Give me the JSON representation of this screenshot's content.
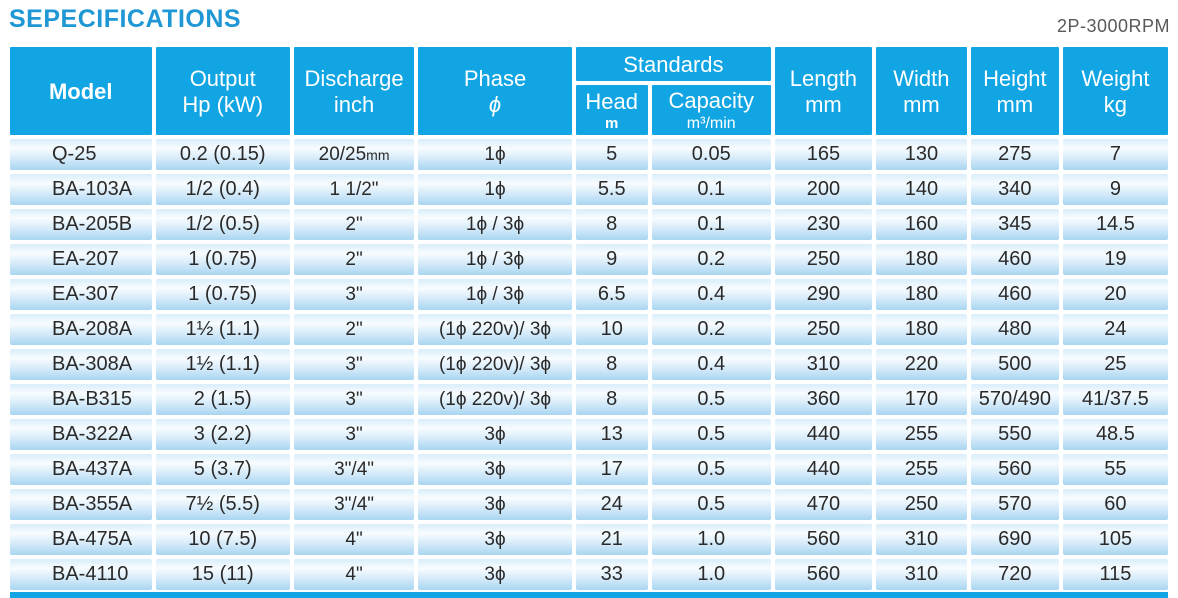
{
  "page": {
    "title": "SEPECIFICATIONS",
    "rpm_label": "2P-3000RPM"
  },
  "colors": {
    "header_blue": "#12a5e3",
    "title_blue": "#1f97d4",
    "row_gradient_top": "#d9edfb",
    "row_gradient_bottom": "#a8d5f1",
    "body_text": "#2a2a2a",
    "rpm_text": "#58595b"
  },
  "table": {
    "column_keys": [
      "model",
      "output",
      "discharge",
      "phase",
      "head",
      "capacity",
      "length",
      "width",
      "height",
      "weight"
    ],
    "headers": {
      "model": "Model",
      "output": [
        "Output",
        "Hp (kW)"
      ],
      "discharge": [
        "Discharge",
        "inch"
      ],
      "phase": [
        "Phase",
        "ϕ"
      ],
      "standards": "Standards",
      "head": [
        "Head",
        "m"
      ],
      "capacity": [
        "Capacity",
        "m³/min"
      ],
      "length": [
        "Length",
        "mm"
      ],
      "width": [
        "Width",
        "mm"
      ],
      "height": [
        "Height",
        "mm"
      ],
      "weight": [
        "Weight",
        "kg"
      ]
    },
    "rows": [
      [
        "Q-25",
        "0.2 (0.15)",
        "20/25mm",
        "1ϕ",
        "5",
        "0.05",
        "165",
        "130",
        "275",
        "7"
      ],
      [
        "BA-103A",
        "1/2 (0.4)",
        "1 1/2\"",
        "1ϕ",
        "5.5",
        "0.1",
        "200",
        "140",
        "340",
        "9"
      ],
      [
        "BA-205B",
        "1/2 (0.5)",
        "2\"",
        "1ϕ / 3ϕ",
        "8",
        "0.1",
        "230",
        "160",
        "345",
        "14.5"
      ],
      [
        "EA-207",
        "1 (0.75)",
        "2\"",
        "1ϕ / 3ϕ",
        "9",
        "0.2",
        "250",
        "180",
        "460",
        "19"
      ],
      [
        "EA-307",
        "1 (0.75)",
        "3\"",
        "1ϕ / 3ϕ",
        "6.5",
        "0.4",
        "290",
        "180",
        "460",
        "20"
      ],
      [
        "BA-208A",
        "1½ (1.1)",
        "2\"",
        "(1ϕ 220v)/ 3ϕ",
        "10",
        "0.2",
        "250",
        "180",
        "480",
        "24"
      ],
      [
        "BA-308A",
        "1½ (1.1)",
        "3\"",
        "(1ϕ 220v)/ 3ϕ",
        "8",
        "0.4",
        "310",
        "220",
        "500",
        "25"
      ],
      [
        "BA-B315",
        "2 (1.5)",
        "3\"",
        "(1ϕ 220v)/ 3ϕ",
        "8",
        "0.5",
        "360",
        "170",
        "570/490",
        "41/37.5"
      ],
      [
        "BA-322A",
        "3 (2.2)",
        "3\"",
        "3ϕ",
        "13",
        "0.5",
        "440",
        "255",
        "550",
        "48.5"
      ],
      [
        "BA-437A",
        "5 (3.7)",
        "3\"/4\"",
        "3ϕ",
        "17",
        "0.5",
        "440",
        "255",
        "560",
        "55"
      ],
      [
        "BA-355A",
        "7½ (5.5)",
        "3\"/4\"",
        "3ϕ",
        "24",
        "0.5",
        "470",
        "250",
        "570",
        "60"
      ],
      [
        "BA-475A",
        "10 (7.5)",
        "4\"",
        "3ϕ",
        "21",
        "1.0",
        "560",
        "310",
        "690",
        "105"
      ],
      [
        "BA-4110",
        "15 (11)",
        "4\"",
        "3ϕ",
        "33",
        "1.0",
        "560",
        "310",
        "720",
        "115"
      ]
    ]
  }
}
